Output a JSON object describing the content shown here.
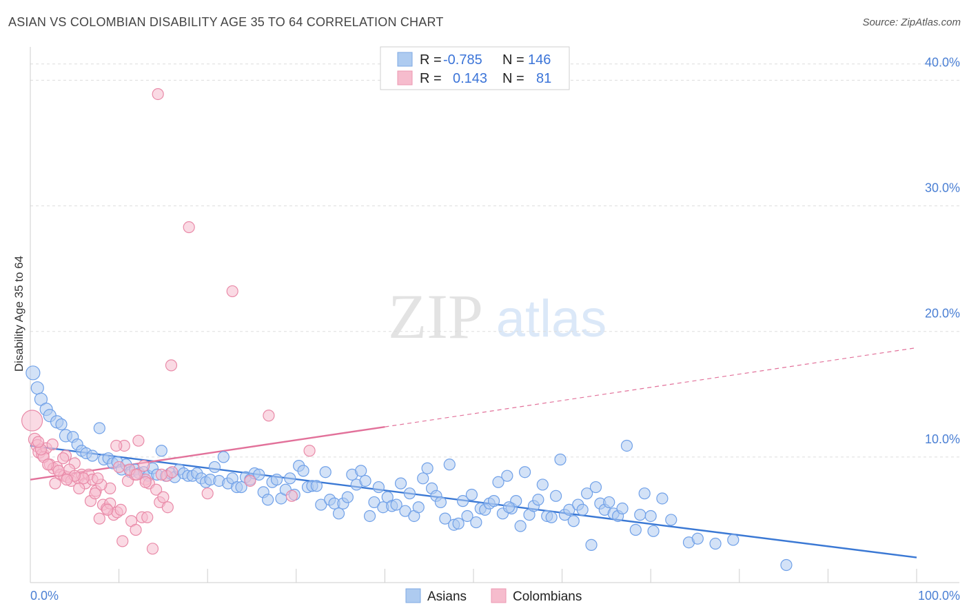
{
  "header": {
    "title": "ASIAN VS COLOMBIAN DISABILITY AGE 35 TO 64 CORRELATION CHART",
    "source": "Source: ZipAtlas.com"
  },
  "watermark": {
    "zip": "ZIP",
    "atlas": "atlas"
  },
  "legend_top": {
    "rows": [
      {
        "r_label": "R =",
        "r_value": "-0.785",
        "n_label": "N =",
        "n_value": "146",
        "color": "#aecbf0"
      },
      {
        "r_label": "R =",
        "r_value": "0.143",
        "n_label": "N =",
        "n_value": "81",
        "color": "#f6bccd"
      }
    ]
  },
  "legend_bottom": {
    "items": [
      {
        "label": "Asians",
        "color": "#aecbf0"
      },
      {
        "label": "Colombians",
        "color": "#f6bccd"
      }
    ]
  },
  "chart_data": {
    "type": "scatter",
    "title": "ASIAN VS COLOMBIAN DISABILITY AGE 35 TO 64 CORRELATION CHART",
    "ylabel": "Disability Age 35 to 64",
    "xlabel": "",
    "xlim": [
      0,
      100
    ],
    "ylim": [
      0,
      42
    ],
    "x_tick_labels": [
      "0.0%",
      "100.0%"
    ],
    "y_ticks": [
      10,
      20,
      30,
      40
    ],
    "y_tick_labels": [
      "10.0%",
      "20.0%",
      "30.0%",
      "40.0%"
    ],
    "grid": true,
    "legend": "top-center",
    "series": [
      {
        "name": "Asians",
        "color": "#6fa0e8",
        "fill": "#aecbf0",
        "trend": {
          "x": [
            0,
            100
          ],
          "y": [
            10.9,
            2.0
          ]
        },
        "points": [
          [
            0.3,
            16.7,
            10
          ],
          [
            0.8,
            15.5,
            9
          ],
          [
            1.2,
            14.6,
            9
          ],
          [
            1.8,
            13.8,
            9
          ],
          [
            2.2,
            13.3,
            9
          ],
          [
            3.0,
            12.8,
            9
          ],
          [
            3.5,
            12.6,
            8
          ],
          [
            4.0,
            11.7,
            9
          ],
          [
            4.8,
            11.6,
            8
          ],
          [
            5.3,
            11.0,
            8
          ],
          [
            5.8,
            10.5,
            8
          ],
          [
            6.3,
            10.3,
            8
          ],
          [
            7.0,
            10.1,
            8
          ],
          [
            7.8,
            12.3,
            8
          ],
          [
            8.3,
            9.8,
            8
          ],
          [
            8.8,
            9.9,
            8
          ],
          [
            9.3,
            9.5,
            8
          ],
          [
            9.8,
            9.6,
            8
          ],
          [
            10.3,
            9.0,
            8
          ],
          [
            10.8,
            9.4,
            8
          ],
          [
            11.3,
            8.8,
            8
          ],
          [
            11.8,
            9.0,
            8
          ],
          [
            12.3,
            8.7,
            8
          ],
          [
            12.8,
            8.8,
            8
          ],
          [
            13.3,
            8.5,
            8
          ],
          [
            13.8,
            9.1,
            8
          ],
          [
            14.3,
            8.6,
            8
          ],
          [
            14.8,
            10.5,
            8
          ],
          [
            15.3,
            8.5,
            8
          ],
          [
            15.8,
            8.7,
            8
          ],
          [
            16.3,
            8.4,
            8
          ],
          [
            16.8,
            9.0,
            8
          ],
          [
            17.3,
            8.7,
            8
          ],
          [
            17.8,
            8.5,
            8
          ],
          [
            18.3,
            8.5,
            8
          ],
          [
            18.8,
            8.7,
            8
          ],
          [
            19.3,
            8.3,
            8
          ],
          [
            19.8,
            8.0,
            8
          ],
          [
            20.3,
            8.2,
            8
          ],
          [
            20.8,
            9.2,
            8
          ],
          [
            21.3,
            8.1,
            8
          ],
          [
            21.8,
            10.0,
            8
          ],
          [
            22.3,
            7.9,
            8
          ],
          [
            22.8,
            8.3,
            8
          ],
          [
            23.3,
            7.6,
            8
          ],
          [
            23.8,
            7.6,
            8
          ],
          [
            24.3,
            8.4,
            8
          ],
          [
            24.8,
            8.2,
            8
          ],
          [
            25.3,
            8.7,
            8
          ],
          [
            25.8,
            8.6,
            8
          ],
          [
            26.3,
            7.2,
            8
          ],
          [
            26.8,
            6.6,
            8
          ],
          [
            27.3,
            8.0,
            8
          ],
          [
            27.8,
            8.2,
            8
          ],
          [
            28.3,
            6.7,
            8
          ],
          [
            28.8,
            7.4,
            8
          ],
          [
            29.3,
            8.3,
            8
          ],
          [
            29.8,
            7.0,
            8
          ],
          [
            30.3,
            9.3,
            8
          ],
          [
            30.8,
            8.9,
            8
          ],
          [
            31.3,
            7.6,
            8
          ],
          [
            31.8,
            7.7,
            8
          ],
          [
            32.3,
            7.7,
            8
          ],
          [
            32.8,
            6.2,
            8
          ],
          [
            33.3,
            8.8,
            8
          ],
          [
            33.8,
            6.6,
            8
          ],
          [
            34.3,
            6.3,
            8
          ],
          [
            34.8,
            5.5,
            8
          ],
          [
            35.3,
            6.3,
            8
          ],
          [
            35.8,
            6.8,
            8
          ],
          [
            36.3,
            8.6,
            8
          ],
          [
            36.8,
            7.8,
            8
          ],
          [
            37.3,
            8.9,
            8
          ],
          [
            37.8,
            8.1,
            8
          ],
          [
            38.3,
            5.3,
            8
          ],
          [
            38.8,
            6.4,
            8
          ],
          [
            39.3,
            7.6,
            8
          ],
          [
            39.8,
            6.0,
            8
          ],
          [
            40.3,
            6.8,
            8
          ],
          [
            40.8,
            6.1,
            8
          ],
          [
            41.3,
            6.2,
            8
          ],
          [
            41.8,
            7.9,
            8
          ],
          [
            42.3,
            5.7,
            8
          ],
          [
            42.8,
            7.1,
            8
          ],
          [
            43.3,
            5.3,
            8
          ],
          [
            43.8,
            6.0,
            8
          ],
          [
            44.3,
            8.3,
            8
          ],
          [
            44.8,
            9.1,
            8
          ],
          [
            45.3,
            7.5,
            8
          ],
          [
            45.8,
            6.9,
            8
          ],
          [
            46.3,
            6.4,
            8
          ],
          [
            46.8,
            5.1,
            8
          ],
          [
            47.3,
            9.4,
            8
          ],
          [
            47.8,
            4.6,
            8
          ],
          [
            48.3,
            4.7,
            8
          ],
          [
            48.8,
            6.5,
            8
          ],
          [
            49.3,
            5.3,
            8
          ],
          [
            49.8,
            7.0,
            8
          ],
          [
            50.3,
            4.8,
            8
          ],
          [
            50.8,
            5.9,
            8
          ],
          [
            51.3,
            5.8,
            8
          ],
          [
            51.8,
            6.3,
            8
          ],
          [
            52.3,
            6.5,
            8
          ],
          [
            52.8,
            8.0,
            8
          ],
          [
            53.3,
            5.5,
            8
          ],
          [
            53.8,
            8.5,
            8
          ],
          [
            54.3,
            5.9,
            8
          ],
          [
            54.8,
            6.5,
            8
          ],
          [
            55.3,
            4.5,
            8
          ],
          [
            55.8,
            8.8,
            8
          ],
          [
            56.3,
            5.4,
            8
          ],
          [
            56.8,
            6.1,
            8
          ],
          [
            57.3,
            6.6,
            8
          ],
          [
            57.8,
            7.8,
            8
          ],
          [
            58.3,
            5.3,
            8
          ],
          [
            58.8,
            5.2,
            8
          ],
          [
            59.3,
            6.9,
            8
          ],
          [
            59.8,
            9.8,
            8
          ],
          [
            60.3,
            5.4,
            8
          ],
          [
            60.8,
            5.8,
            8
          ],
          [
            61.3,
            4.9,
            8
          ],
          [
            61.8,
            6.2,
            8
          ],
          [
            62.3,
            5.8,
            8
          ],
          [
            62.8,
            7.1,
            8
          ],
          [
            63.3,
            3.0,
            8
          ],
          [
            63.8,
            7.6,
            8
          ],
          [
            64.3,
            6.3,
            8
          ],
          [
            64.8,
            5.8,
            8
          ],
          [
            65.3,
            6.4,
            8
          ],
          [
            65.8,
            5.5,
            8
          ],
          [
            66.3,
            5.3,
            8
          ],
          [
            66.8,
            5.9,
            8
          ],
          [
            67.3,
            10.9,
            8
          ],
          [
            68.3,
            4.2,
            8
          ],
          [
            68.8,
            5.4,
            8
          ],
          [
            69.3,
            7.1,
            8
          ],
          [
            70.3,
            4.1,
            8
          ],
          [
            71.3,
            6.7,
            8
          ],
          [
            72.3,
            5.0,
            8
          ],
          [
            74.3,
            3.2,
            8
          ],
          [
            75.3,
            3.5,
            8
          ],
          [
            77.3,
            3.1,
            8
          ],
          [
            79.3,
            3.4,
            8
          ],
          [
            85.3,
            1.4,
            8
          ],
          [
            70.0,
            5.3,
            8
          ],
          [
            54.0,
            6.0,
            8
          ]
        ]
      },
      {
        "name": "Colombians",
        "color": "#e98aa8",
        "fill": "#f6bccd",
        "trend": {
          "x": [
            0,
            40
          ],
          "y": [
            8.2,
            12.4
          ]
        },
        "trend_dashed": {
          "x": [
            40,
            100
          ],
          "y": [
            12.4,
            18.7
          ]
        },
        "points": [
          [
            0.2,
            12.9,
            15
          ],
          [
            0.5,
            11.4,
            9
          ],
          [
            0.8,
            10.9,
            9
          ],
          [
            1.0,
            10.4,
            9
          ],
          [
            1.4,
            10.2,
            9
          ],
          [
            1.8,
            10.7,
            8
          ],
          [
            2.2,
            9.4,
            8
          ],
          [
            2.6,
            9.1,
            8
          ],
          [
            3.0,
            9.2,
            8
          ],
          [
            3.4,
            8.6,
            8
          ],
          [
            3.8,
            8.5,
            8
          ],
          [
            4.2,
            8.4,
            8
          ],
          [
            4.6,
            8.1,
            8
          ],
          [
            5.0,
            9.5,
            8
          ],
          [
            5.4,
            8.3,
            8
          ],
          [
            5.8,
            8.6,
            8
          ],
          [
            6.2,
            7.9,
            8
          ],
          [
            6.6,
            8.6,
            8
          ],
          [
            7.0,
            8.2,
            8
          ],
          [
            7.4,
            7.3,
            8
          ],
          [
            7.8,
            5.1,
            8
          ],
          [
            8.2,
            6.2,
            8
          ],
          [
            8.6,
            5.9,
            8
          ],
          [
            9.0,
            6.3,
            8
          ],
          [
            9.4,
            5.4,
            8
          ],
          [
            9.8,
            5.6,
            8
          ],
          [
            10.2,
            5.8,
            8
          ],
          [
            10.6,
            10.9,
            8
          ],
          [
            11.0,
            8.1,
            8
          ],
          [
            11.4,
            4.9,
            8
          ],
          [
            11.8,
            8.6,
            8
          ],
          [
            12.2,
            11.3,
            8
          ],
          [
            12.6,
            5.2,
            8
          ],
          [
            13.0,
            8.2,
            8
          ],
          [
            13.4,
            7.9,
            8
          ],
          [
            13.8,
            2.7,
            8
          ],
          [
            14.2,
            7.4,
            8
          ],
          [
            14.6,
            6.4,
            8
          ],
          [
            15.0,
            6.8,
            8
          ],
          [
            15.4,
            8.5,
            8
          ],
          [
            14.4,
            38.9,
            8
          ],
          [
            17.9,
            28.3,
            8
          ],
          [
            22.8,
            23.2,
            8
          ],
          [
            15.9,
            17.3,
            8
          ],
          [
            26.9,
            13.3,
            8
          ],
          [
            31.5,
            10.5,
            8
          ],
          [
            4.0,
            10.1,
            8
          ],
          [
            2.5,
            11.0,
            8
          ],
          [
            3.7,
            9.9,
            8
          ],
          [
            9.0,
            7.5,
            8
          ],
          [
            8.0,
            7.8,
            8
          ],
          [
            6.8,
            6.5,
            8
          ],
          [
            5.5,
            7.5,
            8
          ],
          [
            1.5,
            10.0,
            8
          ],
          [
            2.0,
            9.4,
            8
          ],
          [
            10.0,
            9.2,
            8
          ],
          [
            11.2,
            9.0,
            8
          ],
          [
            12.8,
            9.3,
            8
          ],
          [
            16.0,
            8.8,
            8
          ],
          [
            7.3,
            7.1,
            8
          ],
          [
            8.7,
            5.8,
            8
          ],
          [
            10.4,
            3.3,
            8
          ],
          [
            11.9,
            4.2,
            8
          ],
          [
            13.2,
            5.2,
            8
          ],
          [
            15.5,
            6.0,
            8
          ],
          [
            20.0,
            7.1,
            8
          ],
          [
            24.8,
            8.1,
            8
          ],
          [
            29.5,
            6.9,
            8
          ],
          [
            4.4,
            9.0,
            8
          ],
          [
            6.0,
            8.3,
            8
          ],
          [
            3.2,
            8.9,
            8
          ],
          [
            2.8,
            7.9,
            8
          ],
          [
            5.0,
            8.5,
            8
          ],
          [
            9.7,
            10.9,
            8
          ],
          [
            1.2,
            10.6,
            8
          ],
          [
            7.6,
            8.3,
            8
          ],
          [
            0.9,
            11.2,
            8
          ],
          [
            13.0,
            8.0,
            8
          ],
          [
            12.0,
            8.6,
            8
          ],
          [
            14.8,
            8.6,
            8
          ],
          [
            4.1,
            8.2,
            8
          ]
        ]
      }
    ]
  }
}
